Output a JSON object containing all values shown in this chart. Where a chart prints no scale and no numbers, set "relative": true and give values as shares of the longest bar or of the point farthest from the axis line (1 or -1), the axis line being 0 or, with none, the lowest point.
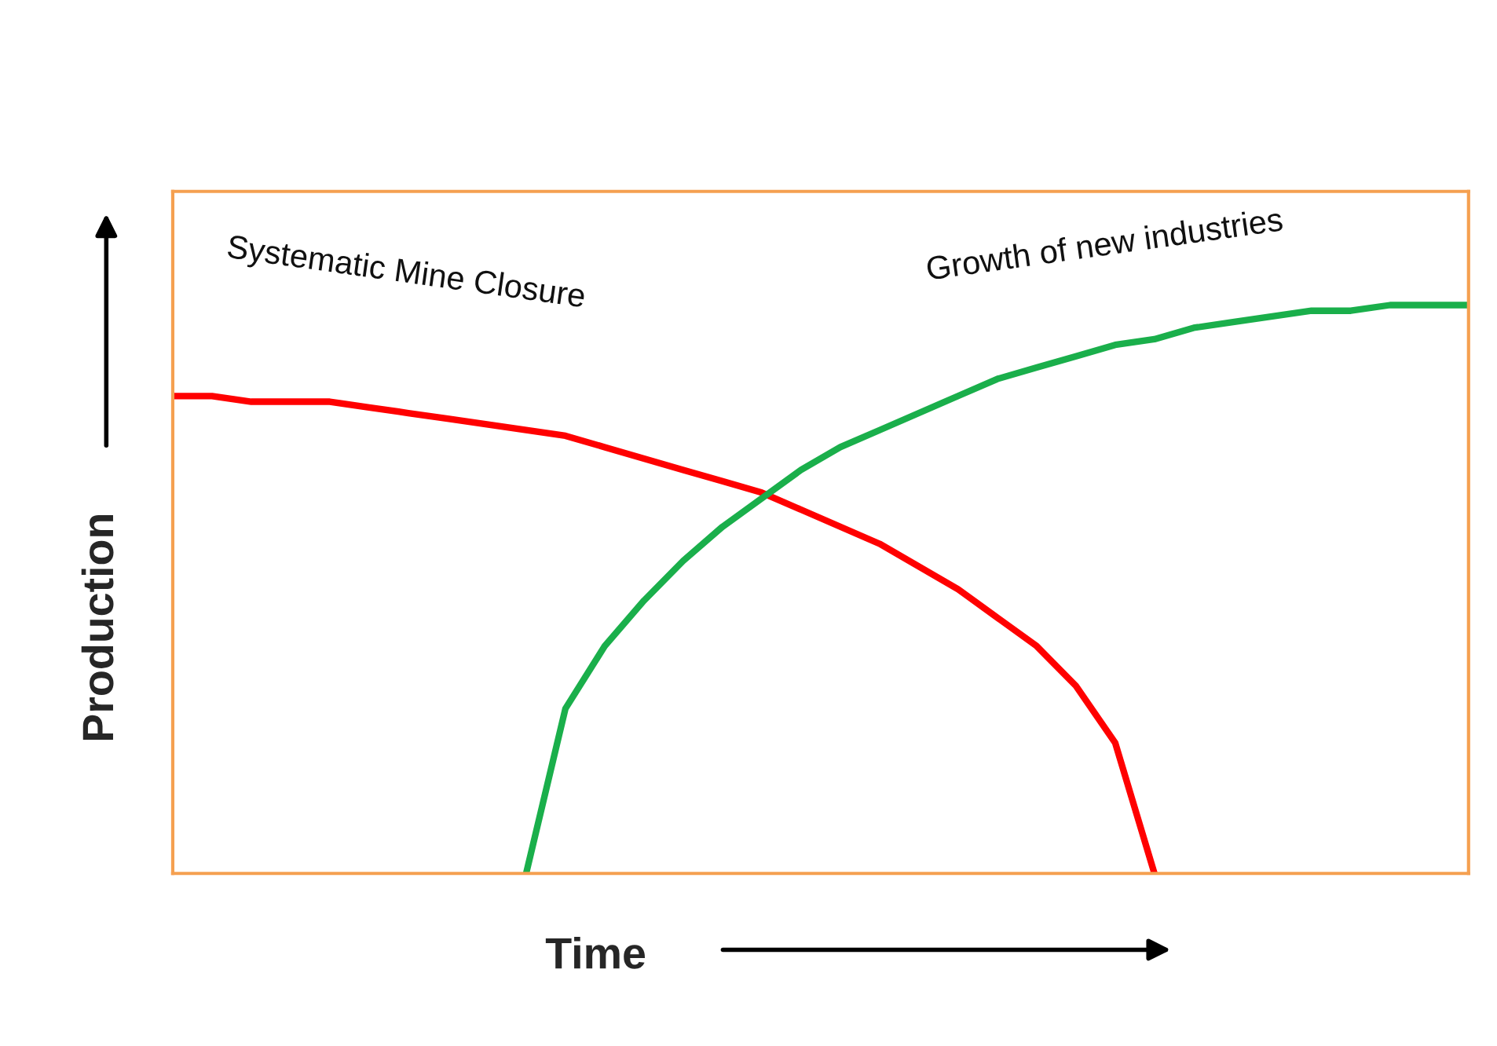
{
  "chart_data": {
    "type": "line",
    "relative": true,
    "xlabel": "Time",
    "ylabel": "Production",
    "legend": false,
    "marker": "none",
    "line_style": "solid",
    "categories": [
      null,
      null,
      null,
      null,
      null,
      null,
      null,
      null,
      null,
      null,
      null,
      null,
      null,
      null,
      null,
      null,
      null,
      null,
      null,
      null,
      null,
      null,
      null,
      null,
      null,
      null,
      null,
      null,
      null,
      null,
      null,
      null,
      null,
      null
    ],
    "series": [
      {
        "name": "Systematic Mine Closure",
        "color": "#ff0000",
        "values": [
          0.84,
          0.84,
          0.83,
          0.83,
          0.83,
          0.82,
          0.81,
          0.8,
          0.79,
          0.78,
          0.77,
          0.75,
          0.73,
          0.71,
          0.69,
          0.67,
          0.64,
          0.61,
          0.58,
          0.54,
          0.5,
          0.45,
          0.4,
          0.33,
          0.23,
          0,
          null,
          null,
          null,
          null,
          null,
          null,
          null,
          null
        ]
      },
      {
        "name": "Growth of new industries",
        "color": "#1aaf4b",
        "values": [
          null,
          null,
          null,
          null,
          null,
          null,
          null,
          null,
          null,
          0,
          0.29,
          0.4,
          0.48,
          0.55,
          0.61,
          0.66,
          0.71,
          0.75,
          0.78,
          0.81,
          0.84,
          0.87,
          0.89,
          0.91,
          0.93,
          0.94,
          0.96,
          0.97,
          0.98,
          0.99,
          0.99,
          1.0,
          1.0,
          1.0
        ]
      }
    ]
  }
}
